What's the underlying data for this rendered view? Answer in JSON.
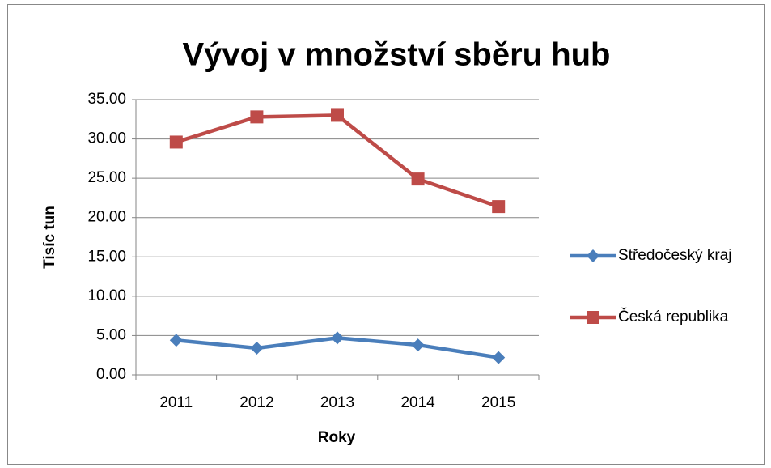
{
  "chart_data": {
    "type": "line",
    "title": "Vývoj v množství sběru hub",
    "x_label": "Roky",
    "y_label": "Tisíc tun",
    "categories": [
      "2011",
      "2012",
      "2013",
      "2014",
      "2015"
    ],
    "series": [
      {
        "name": "Středočeský kraj",
        "color": "#4a7ebb",
        "marker": "diamond",
        "values": [
          4.4,
          3.4,
          4.7,
          3.8,
          2.2
        ]
      },
      {
        "name": "Česká republika",
        "color": "#be4b48",
        "marker": "square",
        "values": [
          29.6,
          32.8,
          33.0,
          24.9,
          21.4
        ]
      }
    ],
    "ylim": [
      0,
      35
    ],
    "yticks": [
      {
        "value": 0,
        "label": "0.00"
      },
      {
        "value": 5,
        "label": "5.00"
      },
      {
        "value": 10,
        "label": "10.00"
      },
      {
        "value": 15,
        "label": "15.00"
      },
      {
        "value": 20,
        "label": "20.00"
      },
      {
        "value": 25,
        "label": "25.00"
      },
      {
        "value": 30,
        "label": "30.00"
      },
      {
        "value": 35,
        "label": "35.00"
      }
    ],
    "grid": true,
    "legend": "right"
  }
}
